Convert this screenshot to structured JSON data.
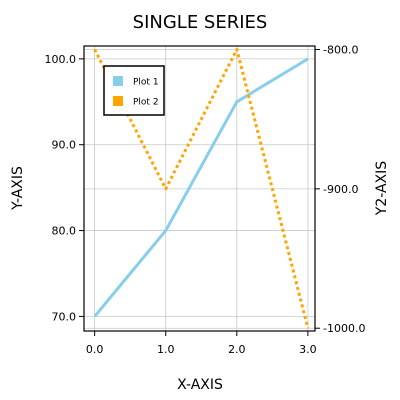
{
  "chart_data": {
    "type": "line",
    "title": "SINGLE SERIES",
    "xlabel": "X-AXIS",
    "ylabel": "Y-AXIS",
    "y2label": "Y2-AXIS",
    "xlim": [
      -0.15,
      3.1
    ],
    "ylim": [
      68.3,
      101.5
    ],
    "y2lim": [
      -1002,
      -797.5
    ],
    "x_ticks": [
      0.0,
      1.0,
      2.0,
      3.0
    ],
    "x_tick_labels": [
      "0.0",
      "1.0",
      "2.0",
      "3.0"
    ],
    "y_ticks": [
      70.0,
      80.0,
      90.0,
      100.0
    ],
    "y_tick_labels": [
      "70.0",
      "80.0",
      "90.0",
      "100.0"
    ],
    "y2_ticks": [
      -1000.0,
      -900.0,
      -800.0
    ],
    "y2_tick_labels": [
      "-1000.0",
      "-900.0",
      "-800.0"
    ],
    "grid": true,
    "legend_position": "top-left",
    "series": [
      {
        "name": "Plot 1",
        "axis": "y",
        "style": "solid",
        "color": "#87ceeb",
        "x": [
          0,
          1,
          2,
          3
        ],
        "values": [
          70,
          80,
          95,
          100
        ]
      },
      {
        "name": "Plot 2",
        "axis": "y2",
        "style": "dotted",
        "color": "#ffa500",
        "x": [
          0,
          1,
          2,
          3
        ],
        "values": [
          -800,
          -900,
          -800,
          -1000
        ]
      }
    ]
  }
}
